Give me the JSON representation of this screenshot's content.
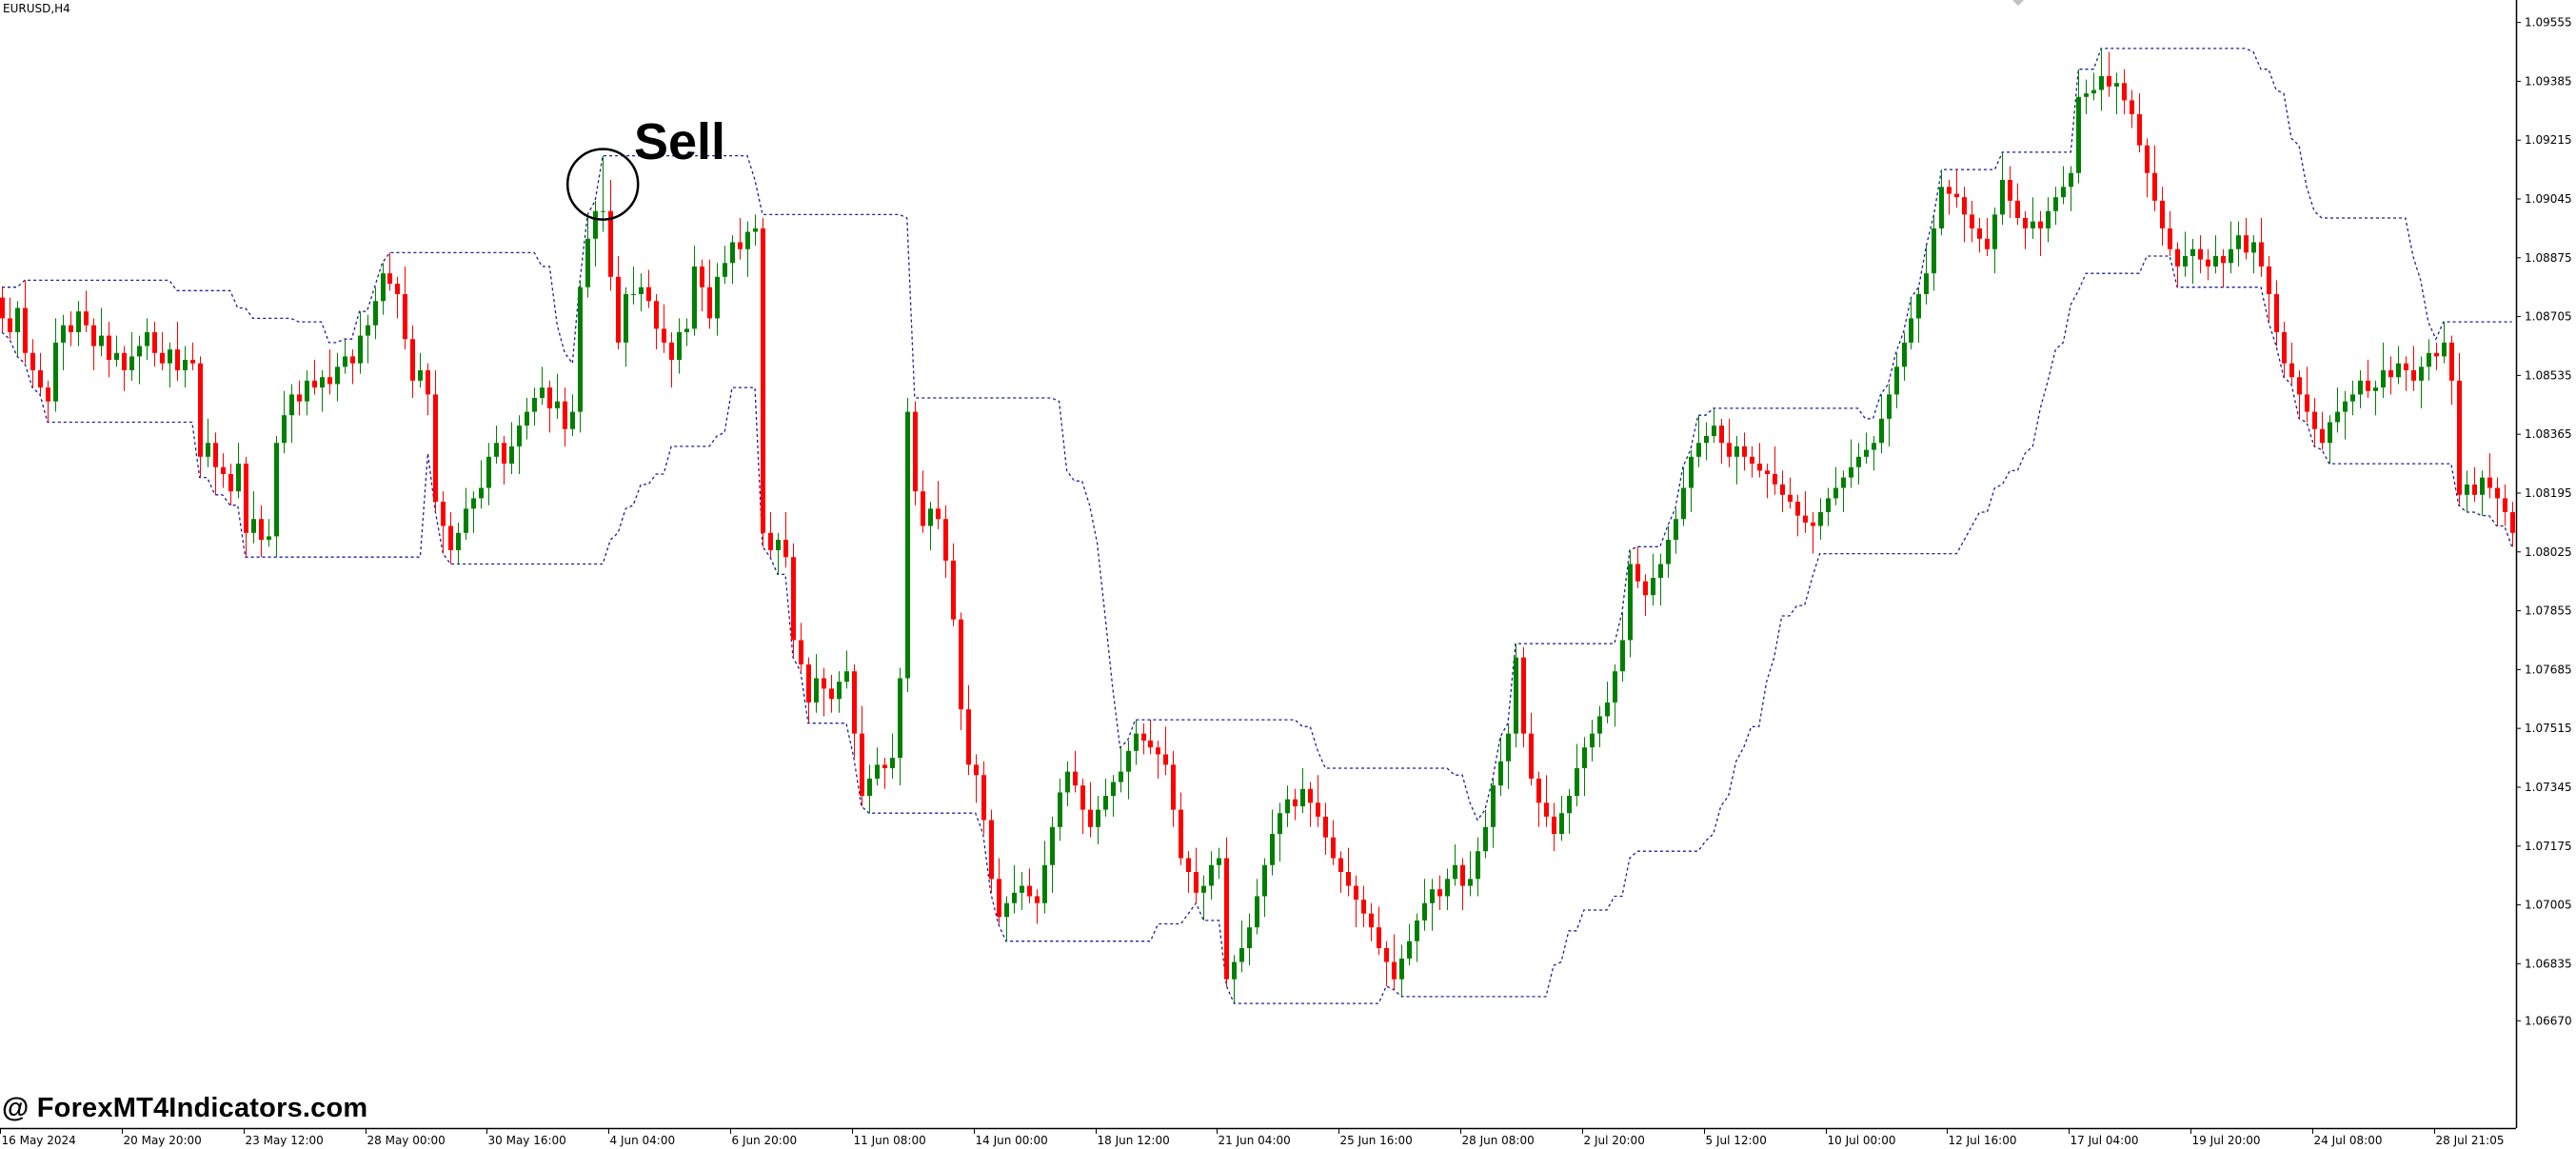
{
  "symbol_label": "EURUSD,H4",
  "annotation": {
    "text": "Sell",
    "marker": "circle",
    "bar": 79
  },
  "watermark": "@ ForexMT4Indicators.com",
  "colors": {
    "up": "#008000",
    "down": "#ff0000",
    "channel": "#1c1c9c",
    "axis": "#000000",
    "annotation": "#000000",
    "shift_marker": "#c0c0c0"
  },
  "chart_data": {
    "type": "candlestick",
    "title": "",
    "xlabel": "",
    "ylabel": "",
    "ylim": [
      1.0636,
      1.0962
    ],
    "grid": false,
    "y_ticks": [
      "1.09555",
      "1.09385",
      "1.09215",
      "1.09045",
      "1.08875",
      "1.08705",
      "1.08535",
      "1.08365",
      "1.08195",
      "1.08025",
      "1.07855",
      "1.07685",
      "1.07515",
      "1.07345",
      "1.07175",
      "1.07005",
      "1.06835",
      "1.06670"
    ],
    "x_ticks": [
      {
        "bar": 0,
        "label": "16 May 2024"
      },
      {
        "bar": 16,
        "label": "20 May 20:00"
      },
      {
        "bar": 32,
        "label": "23 May 12:00"
      },
      {
        "bar": 48,
        "label": "28 May 00:00"
      },
      {
        "bar": 64,
        "label": "30 May 16:00"
      },
      {
        "bar": 80,
        "label": "4 Jun 04:00"
      },
      {
        "bar": 96,
        "label": "6 Jun 20:00"
      },
      {
        "bar": 112,
        "label": "11 Jun 08:00"
      },
      {
        "bar": 128,
        "label": "14 Jun 00:00"
      },
      {
        "bar": 144,
        "label": "18 Jun 12:00"
      },
      {
        "bar": 160,
        "label": "21 Jun 04:00"
      },
      {
        "bar": 176,
        "label": "25 Jun 16:00"
      },
      {
        "bar": 192,
        "label": "28 Jun 08:00"
      },
      {
        "bar": 208,
        "label": "2 Jul 20:00"
      },
      {
        "bar": 224,
        "label": "5 Jul 12:00"
      },
      {
        "bar": 240,
        "label": "10 Jul 00:00"
      },
      {
        "bar": 256,
        "label": "12 Jul 16:00"
      },
      {
        "bar": 272,
        "label": "17 Jul 04:00"
      },
      {
        "bar": 288,
        "label": "19 Jul 20:00"
      },
      {
        "bar": 304,
        "label": "24 Jul 08:00"
      },
      {
        "bar": 320,
        "label": "28 Jul 21:05"
      }
    ],
    "first_open": 1.0876,
    "close": [
      1.087,
      1.0866,
      1.0873,
      1.086,
      1.0855,
      1.085,
      1.0846,
      1.0863,
      1.0868,
      1.0866,
      1.0872,
      1.0868,
      1.0862,
      1.0865,
      1.0858,
      1.086,
      1.0855,
      1.0859,
      1.0862,
      1.0866,
      1.086,
      1.0857,
      1.0861,
      1.0855,
      1.0858,
      1.0857,
      1.083,
      1.0834,
      1.0827,
      1.0825,
      1.082,
      1.0828,
      1.0808,
      1.0812,
      1.0806,
      1.0807,
      1.0834,
      1.0842,
      1.0848,
      1.0846,
      1.0852,
      1.085,
      1.0853,
      1.0851,
      1.0856,
      1.0859,
      1.0857,
      1.0865,
      1.0868,
      1.0875,
      1.0883,
      1.088,
      1.0877,
      1.0864,
      1.0852,
      1.0855,
      1.0848,
      1.0817,
      1.081,
      1.0803,
      1.0808,
      1.0815,
      1.0818,
      1.0821,
      1.083,
      1.0834,
      1.0828,
      1.0833,
      1.0839,
      1.0843,
      1.0847,
      1.085,
      1.0844,
      1.0846,
      1.0838,
      1.0843,
      1.0879,
      1.0893,
      1.0901,
      1.0901,
      1.0882,
      1.0863,
      1.0877,
      1.0877,
      1.0879,
      1.0875,
      1.0867,
      1.0863,
      1.0858,
      1.0866,
      1.0867,
      1.0885,
      1.0879,
      1.087,
      1.0882,
      1.0886,
      1.0892,
      1.089,
      1.0895,
      1.0896,
      1.0808,
      1.0803,
      1.0806,
      1.0801,
      1.0777,
      1.077,
      1.0759,
      1.0766,
      1.0763,
      1.076,
      1.0765,
      1.0768,
      1.075,
      1.0732,
      1.0737,
      1.0741,
      1.074,
      1.0743,
      1.0766,
      1.0843,
      1.082,
      1.081,
      1.0815,
      1.0812,
      1.08,
      1.0783,
      1.0757,
      1.0741,
      1.0738,
      1.0725,
      1.0708,
      1.0697,
      1.0701,
      1.0704,
      1.0706,
      1.0703,
      1.0701,
      1.0712,
      1.0723,
      1.0733,
      1.0739,
      1.0735,
      1.0728,
      1.0723,
      1.0728,
      1.0732,
      1.0736,
      1.0739,
      1.0745,
      1.075,
      1.0748,
      1.0746,
      1.0744,
      1.0741,
      1.0728,
      1.0714,
      1.071,
      1.0704,
      1.0706,
      1.0712,
      1.0714,
      1.0679,
      1.0684,
      1.0688,
      1.0694,
      1.0703,
      1.0712,
      1.0721,
      1.0727,
      1.0731,
      1.0729,
      1.0734,
      1.073,
      1.0726,
      1.072,
      1.0714,
      1.071,
      1.0706,
      1.0702,
      1.0698,
      1.0694,
      1.0688,
      1.0684,
      1.0679,
      1.0685,
      1.069,
      1.0696,
      1.0701,
      1.0705,
      1.0703,
      1.0708,
      1.0712,
      1.0706,
      1.0708,
      1.0716,
      1.0723,
      1.0735,
      1.0742,
      1.075,
      1.0772,
      1.075,
      1.0737,
      1.073,
      1.0726,
      1.0721,
      1.0727,
      1.0732,
      1.074,
      1.0746,
      1.075,
      1.0755,
      1.0759,
      1.0768,
      1.0777,
      1.0799,
      1.0794,
      1.079,
      1.0795,
      1.0799,
      1.0806,
      1.0812,
      1.0821,
      1.083,
      1.0834,
      1.0836,
      1.0839,
      1.0834,
      1.083,
      1.0833,
      1.083,
      1.0828,
      1.0826,
      1.0825,
      1.0822,
      1.0819,
      1.0817,
      1.0813,
      1.0811,
      1.081,
      1.0814,
      1.0818,
      1.0821,
      1.0824,
      1.0827,
      1.083,
      1.0832,
      1.0834,
      1.0841,
      1.0848,
      1.0856,
      1.0863,
      1.087,
      1.0877,
      1.0883,
      1.0896,
      1.0908,
      1.0906,
      1.0905,
      1.09,
      1.0896,
      1.0893,
      1.089,
      1.09,
      1.091,
      1.0904,
      1.0899,
      1.0896,
      1.0898,
      1.0896,
      1.0901,
      1.0905,
      1.0908,
      1.0912,
      1.0934,
      1.0935,
      1.0936,
      1.094,
      1.0937,
      1.0938,
      1.0933,
      1.0929,
      1.092,
      1.0912,
      1.0904,
      1.0896,
      1.089,
      1.0885,
      1.0888,
      1.089,
      1.0887,
      1.0885,
      1.0888,
      1.0886,
      1.089,
      1.0894,
      1.0889,
      1.0892,
      1.0885,
      1.0877,
      1.0866,
      1.0857,
      1.0853,
      1.0848,
      1.0843,
      1.0838,
      1.0834,
      1.084,
      1.0843,
      1.0846,
      1.0848,
      1.0852,
      1.0849,
      1.085,
      1.0855,
      1.0853,
      1.0857,
      1.0855,
      1.0852,
      1.0856,
      1.086,
      1.0859,
      1.0863,
      1.0852,
      1.0819,
      1.0822,
      1.0819,
      1.0824,
      1.0821,
      1.0818,
      1.0814,
      1.0808
    ],
    "high": [
      1.0879,
      1.0876,
      1.0875,
      1.0881,
      1.0864,
      1.086,
      1.0852,
      1.087,
      1.0871,
      1.0872,
      1.0875,
      1.0878,
      1.087,
      1.0873,
      1.0869,
      1.0865,
      1.0862,
      1.0866,
      1.0865,
      1.087,
      1.0869,
      1.0866,
      1.0863,
      1.0869,
      1.0862,
      1.0863,
      1.0859,
      1.0841,
      1.0837,
      1.0831,
      1.0828,
      1.0834,
      1.083,
      1.082,
      1.0816,
      1.0812,
      1.0836,
      1.0849,
      1.0851,
      1.0852,
      1.0855,
      1.0858,
      1.0855,
      1.0861,
      1.086,
      1.0864,
      1.0861,
      1.0872,
      1.0871,
      1.0879,
      1.0886,
      1.0889,
      1.0882,
      1.0885,
      1.0868,
      1.086,
      1.0857,
      1.0855,
      1.082,
      1.0814,
      1.0811,
      1.0821,
      1.082,
      1.0829,
      1.0834,
      1.0839,
      1.0836,
      1.084,
      1.0842,
      1.0847,
      1.085,
      1.0856,
      1.0852,
      1.0854,
      1.085,
      1.0848,
      1.0881,
      1.09,
      1.0904,
      1.0917,
      1.091,
      1.0888,
      1.0879,
      1.0885,
      1.0883,
      1.0884,
      1.0877,
      1.0874,
      1.0866,
      1.087,
      1.087,
      1.0891,
      1.0887,
      1.0887,
      1.0886,
      1.0891,
      1.0894,
      1.0899,
      1.0898,
      1.09,
      1.0899,
      1.0814,
      1.0808,
      1.0814,
      1.0805,
      1.0782,
      1.0772,
      1.0773,
      1.0769,
      1.0767,
      1.0768,
      1.0774,
      1.077,
      1.0758,
      1.0741,
      1.0746,
      1.0743,
      1.075,
      1.0769,
      1.0847,
      1.0846,
      1.0826,
      1.0817,
      1.0823,
      1.0816,
      1.0805,
      1.0785,
      1.0764,
      1.0744,
      1.0742,
      1.0728,
      1.0714,
      1.0703,
      1.0712,
      1.071,
      1.0711,
      1.0705,
      1.0719,
      1.0726,
      1.0737,
      1.0742,
      1.0745,
      1.0737,
      1.0736,
      1.0732,
      1.0737,
      1.0738,
      1.0746,
      1.0748,
      1.0754,
      1.0753,
      1.0754,
      1.0748,
      1.0752,
      1.0745,
      1.0733,
      1.0716,
      1.0717,
      1.0709,
      1.0716,
      1.0717,
      1.072,
      1.0686,
      1.0696,
      1.0698,
      1.0708,
      1.0714,
      1.0728,
      1.073,
      1.0735,
      1.0734,
      1.074,
      1.0736,
      1.0738,
      1.073,
      1.0725,
      1.0716,
      1.0717,
      1.0709,
      1.0706,
      1.0701,
      1.07,
      1.069,
      1.0692,
      1.0689,
      1.0695,
      1.0698,
      1.0708,
      1.0708,
      1.0709,
      1.0711,
      1.0718,
      1.0714,
      1.0716,
      1.072,
      1.0728,
      1.0737,
      1.0749,
      1.0753,
      1.0776,
      1.0775,
      1.0756,
      1.0739,
      1.0738,
      1.073,
      1.0732,
      1.0734,
      1.0747,
      1.0749,
      1.0754,
      1.0758,
      1.0765,
      1.077,
      1.0785,
      1.0803,
      1.0804,
      1.0796,
      1.0802,
      1.0802,
      1.081,
      1.0815,
      1.0827,
      1.0832,
      1.0842,
      1.084,
      1.0844,
      1.0841,
      1.0841,
      1.0836,
      1.0837,
      1.0833,
      1.0834,
      1.0828,
      1.0833,
      1.0826,
      1.0824,
      1.0819,
      1.082,
      1.0814,
      1.0818,
      1.0821,
      1.0827,
      1.0826,
      1.0835,
      1.0834,
      1.0837,
      1.0836,
      1.0848,
      1.0851,
      1.086,
      1.0866,
      1.0876,
      1.0879,
      1.0891,
      1.09,
      1.0913,
      1.091,
      1.0913,
      1.0908,
      1.0904,
      1.0899,
      1.0899,
      1.0902,
      1.0918,
      1.0914,
      1.0909,
      1.0901,
      1.0905,
      1.0901,
      1.0905,
      1.0908,
      1.0914,
      1.0914,
      1.0942,
      1.0939,
      1.0941,
      1.0948,
      1.0947,
      1.0941,
      1.0942,
      1.0936,
      1.0935,
      1.0922,
      1.092,
      1.0908,
      1.0901,
      1.0892,
      1.0895,
      1.0893,
      1.0894,
      1.089,
      1.0894,
      1.089,
      1.0898,
      1.0898,
      1.0899,
      1.0894,
      1.0899,
      1.0888,
      1.0881,
      1.0869,
      1.0863,
      1.0855,
      1.0856,
      1.0847,
      1.0843,
      1.0842,
      1.085,
      1.0849,
      1.0852,
      1.0855,
      1.0858,
      1.0852,
      1.0863,
      1.0859,
      1.0862,
      1.0859,
      1.0862,
      1.0859,
      1.0864,
      1.0863,
      1.0869,
      1.0865,
      1.086,
      1.0826,
      1.0827,
      1.0826,
      1.0831,
      1.0824,
      1.0822,
      1.0817
    ],
    "low": [
      1.0866,
      1.0864,
      1.0859,
      1.0857,
      1.085,
      1.0848,
      1.084,
      1.0843,
      1.0855,
      1.0862,
      1.0862,
      1.0866,
      1.0855,
      1.0859,
      1.0853,
      1.0856,
      1.0849,
      1.0852,
      1.0851,
      1.0858,
      1.0856,
      1.0855,
      1.085,
      1.0852,
      1.085,
      1.0855,
      1.0824,
      1.0827,
      1.0819,
      1.0821,
      1.0816,
      1.0818,
      1.0801,
      1.0805,
      1.0801,
      1.0804,
      1.0801,
      1.0831,
      1.0834,
      1.0842,
      1.0842,
      1.0848,
      1.0843,
      1.0848,
      1.0846,
      1.0854,
      1.0851,
      1.0854,
      1.0857,
      1.0864,
      1.0871,
      1.0878,
      1.087,
      1.0861,
      1.0847,
      1.085,
      1.0842,
      1.0814,
      1.0802,
      1.0799,
      1.0799,
      1.0806,
      1.0808,
      1.0815,
      1.0816,
      1.0828,
      1.0822,
      1.0825,
      1.0825,
      1.0835,
      1.0839,
      1.0845,
      1.0837,
      1.0841,
      1.0833,
      1.0836,
      1.0837,
      1.0876,
      1.0885,
      1.0895,
      1.0878,
      1.0861,
      1.0856,
      1.0874,
      1.0872,
      1.0873,
      1.0861,
      1.086,
      1.085,
      1.0854,
      1.0862,
      1.0865,
      1.0872,
      1.0867,
      1.0865,
      1.088,
      1.088,
      1.0887,
      1.0882,
      1.0891,
      1.0804,
      1.0801,
      1.0796,
      1.0798,
      1.0772,
      1.0768,
      1.0753,
      1.0756,
      1.0755,
      1.0756,
      1.0756,
      1.0763,
      1.0743,
      1.0729,
      1.0727,
      1.0735,
      1.0734,
      1.0737,
      1.0735,
      1.0762,
      1.0816,
      1.0808,
      1.0803,
      1.0809,
      1.0795,
      1.0781,
      1.0751,
      1.0738,
      1.073,
      1.0721,
      1.0704,
      1.0695,
      1.069,
      1.0698,
      1.0699,
      1.0701,
      1.0695,
      1.0698,
      1.0704,
      1.0719,
      1.0729,
      1.0733,
      1.0721,
      1.072,
      1.0718,
      1.0726,
      1.0726,
      1.0733,
      1.0731,
      1.0741,
      1.0744,
      1.0744,
      1.0737,
      1.0738,
      1.0723,
      1.0712,
      1.0704,
      1.0701,
      1.0696,
      1.0702,
      1.0708,
      1.0677,
      1.0672,
      1.0681,
      1.0683,
      1.0692,
      1.0697,
      1.0709,
      1.0713,
      1.0723,
      1.0725,
      1.0727,
      1.0723,
      1.0723,
      1.0715,
      1.0712,
      1.0704,
      1.0703,
      1.0694,
      1.0694,
      1.069,
      1.0686,
      1.0677,
      1.0676,
      1.0674,
      1.0683,
      1.0684,
      1.0693,
      1.0693,
      1.0699,
      1.0699,
      1.0706,
      1.0699,
      1.0703,
      1.0703,
      1.0714,
      1.0717,
      1.0732,
      1.0734,
      1.0746,
      1.0746,
      1.0735,
      1.0723,
      1.0723,
      1.0716,
      1.0719,
      1.0721,
      1.0729,
      1.0732,
      1.0742,
      1.0746,
      1.0753,
      1.0752,
      1.0765,
      1.0772,
      1.0792,
      1.0784,
      1.0787,
      1.0787,
      1.0795,
      1.0802,
      1.081,
      1.0814,
      1.0827,
      1.0829,
      1.0834,
      1.0828,
      1.0827,
      1.0822,
      1.0826,
      1.0824,
      1.0824,
      1.0818,
      1.0819,
      1.0814,
      1.0815,
      1.0807,
      1.0808,
      1.0802,
      1.0806,
      1.081,
      1.0816,
      1.0814,
      1.0821,
      1.0822,
      1.0828,
      1.0826,
      1.0831,
      1.0833,
      1.0844,
      1.0852,
      1.0861,
      1.0863,
      1.0874,
      1.0878,
      1.0894,
      1.09,
      1.0902,
      1.0892,
      1.0892,
      1.0889,
      1.0888,
      1.0883,
      1.0897,
      1.0899,
      1.0897,
      1.089,
      1.0893,
      1.0888,
      1.0892,
      1.0897,
      1.0903,
      1.0901,
      1.0909,
      1.0929,
      1.0933,
      1.093,
      1.0934,
      1.0929,
      1.0929,
      1.0925,
      1.0918,
      1.0905,
      1.0901,
      1.0891,
      1.0888,
      1.0879,
      1.0882,
      1.088,
      1.0883,
      1.0881,
      1.0883,
      1.0879,
      1.0883,
      1.0885,
      1.0887,
      1.0883,
      1.0882,
      1.0869,
      1.0862,
      1.0853,
      1.0851,
      1.0841,
      1.084,
      1.0833,
      1.0832,
      1.0828,
      1.0837,
      1.0835,
      1.0842,
      1.0844,
      1.0847,
      1.0842,
      1.0847,
      1.0848,
      1.0851,
      1.0849,
      1.0849,
      1.0844,
      1.0852,
      1.0855,
      1.0857,
      1.0845,
      1.0816,
      1.0814,
      1.0817,
      1.0813,
      1.0818,
      1.081,
      1.081,
      1.0804
    ]
  }
}
